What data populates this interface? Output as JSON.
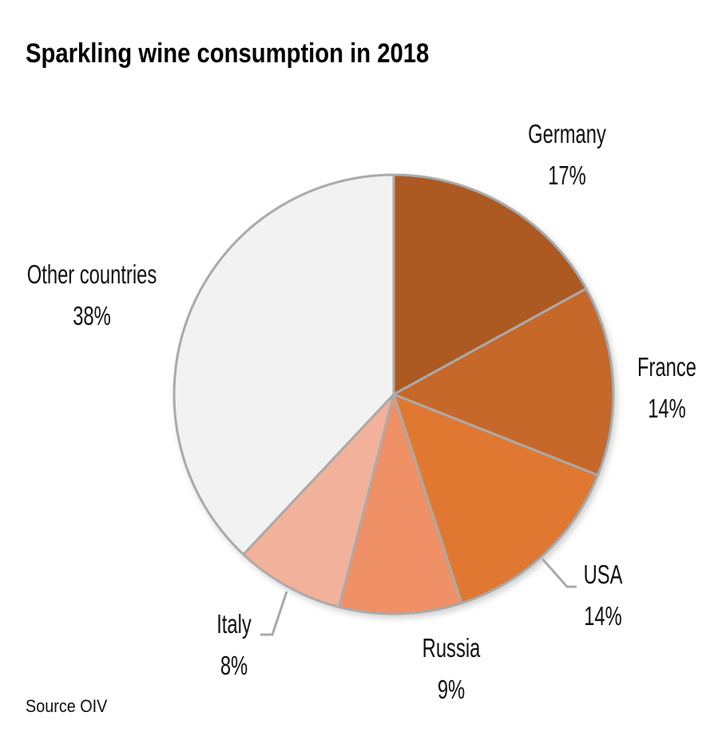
{
  "title": "Sparkling wine consumption in 2018",
  "source": "Source OIV",
  "colors": {
    "Germany": "#ad5a22",
    "France": "#c6682a",
    "USA": "#e07831",
    "Russia": "#ef9066",
    "Italy": "#f2b19b",
    "Other countries": "#f2f2f2",
    "border": "#aaaaaa"
  },
  "labels": {
    "germany": {
      "name": "Germany",
      "pct": "17%"
    },
    "france": {
      "name": "France",
      "pct": "14%"
    },
    "usa": {
      "name": "USA",
      "pct": "14%"
    },
    "russia": {
      "name": "Russia",
      "pct": "9%"
    },
    "italy": {
      "name": "Italy",
      "pct": "8%"
    },
    "other": {
      "name": "Other countries",
      "pct": "38%"
    }
  },
  "chart_data": {
    "type": "pie",
    "title": "Sparkling wine consumption in 2018",
    "categories": [
      "Germany",
      "France",
      "USA",
      "Russia",
      "Italy",
      "Other countries"
    ],
    "values": [
      17,
      14,
      14,
      9,
      8,
      38
    ],
    "unit": "%",
    "start_angle": "12 o'clock",
    "direction": "clockwise",
    "legend": "none (data labels on slices)",
    "source": "Source OIV"
  }
}
